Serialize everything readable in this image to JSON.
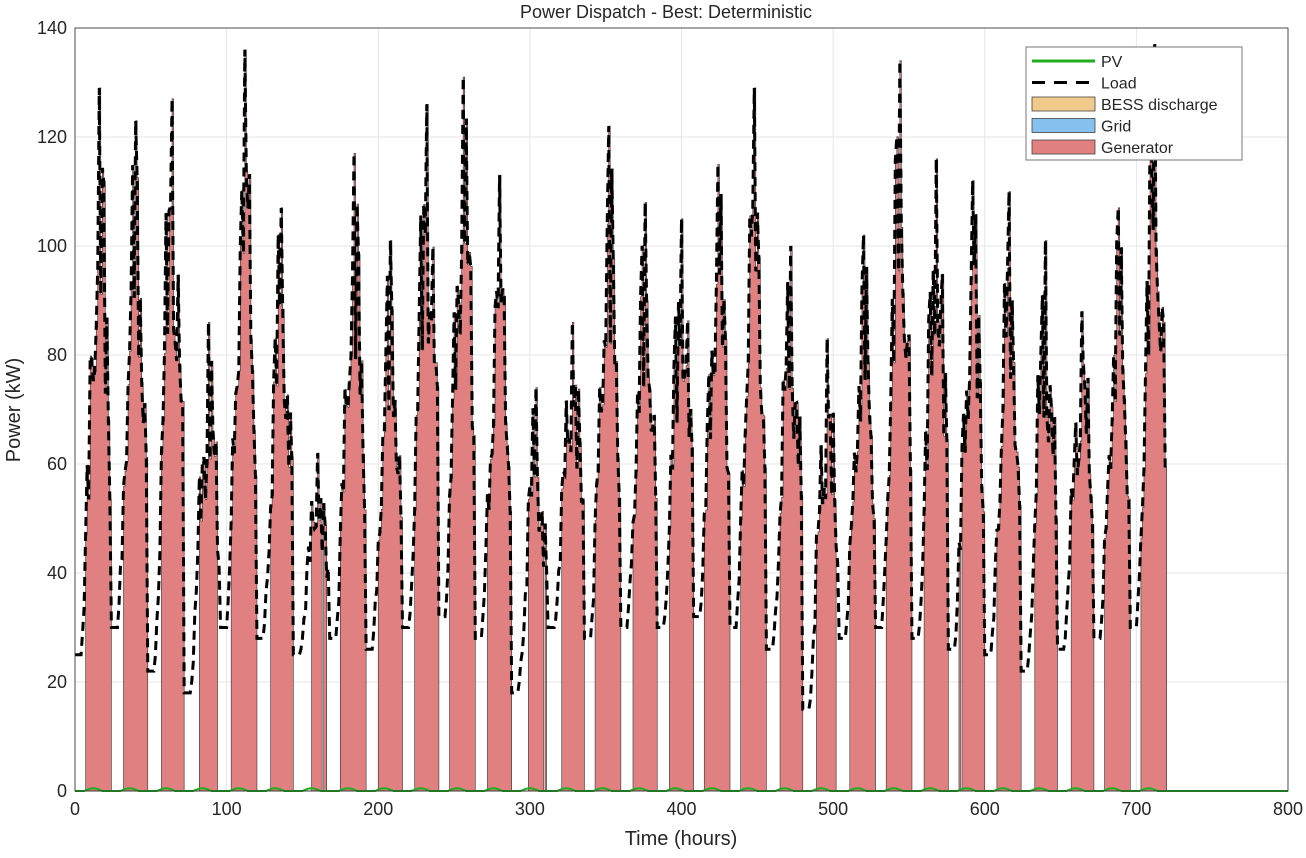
{
  "chart_data": {
    "type": "area",
    "title": "Power Dispatch - Best: Deterministic",
    "xlabel": "Time (hours)",
    "ylabel": "Power (kW)",
    "xlim": [
      0,
      800
    ],
    "ylim": [
      0,
      140
    ],
    "xticks": [
      0,
      100,
      200,
      300,
      400,
      500,
      600,
      700,
      800
    ],
    "yticks": [
      0,
      20,
      40,
      60,
      80,
      100,
      120,
      140
    ],
    "grid": true,
    "legend_position": "top-right",
    "legend": [
      {
        "label": "PV",
        "kind": "line",
        "color": "#1fae1f"
      },
      {
        "label": "Load",
        "kind": "dashed-line",
        "color": "#000000"
      },
      {
        "label": "BESS discharge",
        "kind": "patch",
        "color": "#f2c98c"
      },
      {
        "label": "Grid",
        "kind": "patch",
        "color": "#86c0ee"
      },
      {
        "label": "Generator",
        "kind": "patch",
        "color": "#e08080"
      }
    ],
    "hours": 720,
    "daily_load_peak_kw": [
      129,
      123,
      127,
      86,
      136,
      107,
      62,
      117,
      101,
      126,
      131,
      113,
      74,
      86,
      122,
      108,
      105,
      115,
      129,
      100,
      83,
      102,
      134,
      116,
      112,
      110,
      101,
      88,
      107,
      137
    ],
    "daily_load_min_kw": [
      25,
      30,
      22,
      18,
      30,
      28,
      25,
      28,
      26,
      30,
      32,
      28,
      18,
      30,
      28,
      30,
      30,
      32,
      30,
      26,
      15,
      28,
      30,
      28,
      26,
      25,
      22,
      26,
      28,
      30
    ],
    "generator_dispatch_threshold_kw": 45,
    "pv_peak_kw": 0.5,
    "bess_discharge_kw": 0,
    "grid_kw": 0
  }
}
